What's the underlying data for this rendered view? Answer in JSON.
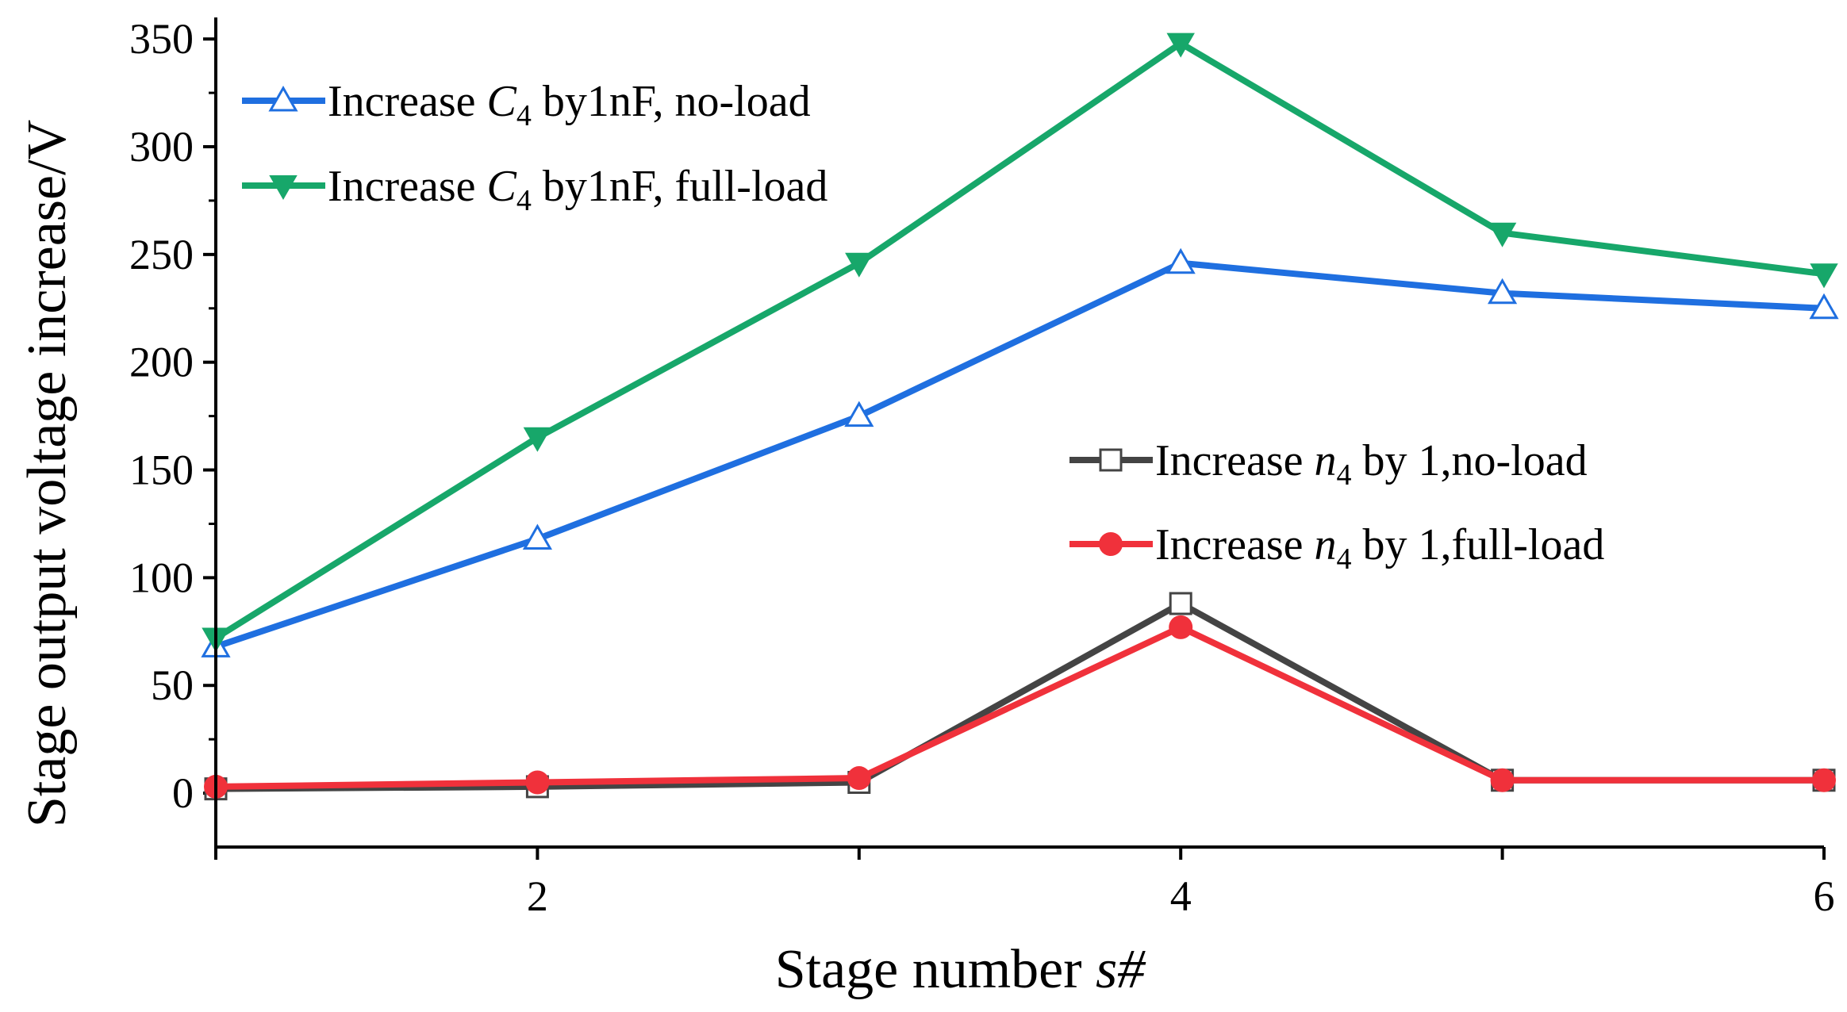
{
  "chart_data": {
    "type": "line",
    "title": "",
    "xlabel": "Stage number",
    "xlabel_symbol": "s#",
    "ylabel": "Stage output voltage increase/V",
    "x": [
      1,
      2,
      3,
      4,
      5,
      6
    ],
    "xlim": [
      1,
      6
    ],
    "ylim": [
      -25,
      360
    ],
    "xticks": [
      1,
      2,
      3,
      4,
      5,
      6
    ],
    "xtick_labels": [
      "",
      "2",
      "",
      "4",
      "",
      "6"
    ],
    "yticks": [
      0,
      50,
      100,
      150,
      200,
      250,
      300,
      350
    ],
    "ytick_labels": [
      "0",
      "50",
      "100",
      "150",
      "200",
      "250",
      "300",
      "350"
    ],
    "grid": false,
    "series": [
      {
        "name": "Increase C4 by1nF, no-load",
        "legend": {
          "prefix": "Increase ",
          "sym": "C",
          "sub": "4",
          "suffix": " by1nF, no-load"
        },
        "values": [
          68,
          118,
          175,
          246,
          232,
          225
        ],
        "color": "#1f6fe0",
        "marker": "triangle-up-open"
      },
      {
        "name": "Increase C4 by1nF, full-load",
        "legend": {
          "prefix": "Increase ",
          "sym": "C",
          "sub": "4",
          "suffix": " by1nF, full-load"
        },
        "values": [
          72,
          165,
          246,
          348,
          260,
          241
        ],
        "color": "#17a76a",
        "marker": "triangle-down-filled"
      },
      {
        "name": "Increase n4 by 1,no-load",
        "legend": {
          "prefix": "Increase ",
          "sym": "n",
          "sub": "4",
          "suffix": " by 1,no-load"
        },
        "values": [
          2,
          3,
          5,
          88,
          6,
          6
        ],
        "color": "#444444",
        "marker": "square-open"
      },
      {
        "name": "Increase n4 by 1,full-load",
        "legend": {
          "prefix": "Increase ",
          "sym": "n",
          "sub": "4",
          "suffix": " by 1,full-load"
        },
        "values": [
          3,
          5,
          7,
          77,
          6,
          6
        ],
        "color": "#f0313b",
        "marker": "circle-filled"
      }
    ],
    "legend_groups": [
      {
        "placement": "top-left",
        "series_index": [
          0,
          1
        ]
      },
      {
        "placement": "middle-right",
        "series_index": [
          2,
          3
        ]
      }
    ]
  }
}
